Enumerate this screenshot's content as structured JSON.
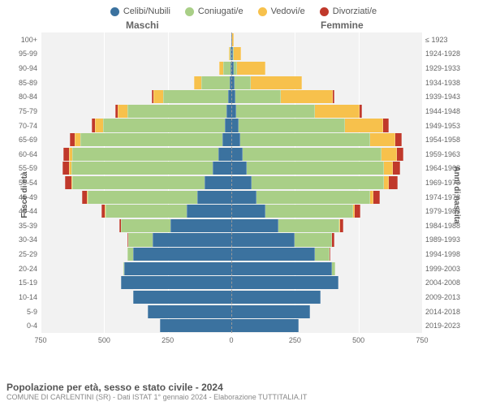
{
  "legend": [
    {
      "label": "Celibi/Nubili",
      "color": "#3b729f"
    },
    {
      "label": "Coniugati/e",
      "color": "#a9cf87"
    },
    {
      "label": "Vedovi/e",
      "color": "#f7c14c"
    },
    {
      "label": "Divorziati/e",
      "color": "#c0392b"
    }
  ],
  "header_male": "Maschi",
  "header_female": "Femmine",
  "ylabel_left": "Fasce di età",
  "ylabel_right": "Anni di nascita",
  "chart": {
    "max": 750,
    "xticks": [
      750,
      500,
      250,
      0,
      250,
      500,
      750
    ],
    "age_labels": [
      "100+",
      "95-99",
      "90-94",
      "85-89",
      "80-84",
      "75-79",
      "70-74",
      "65-69",
      "60-64",
      "55-59",
      "50-54",
      "45-49",
      "40-44",
      "35-39",
      "30-34",
      "25-29",
      "20-24",
      "15-19",
      "10-14",
      "5-9",
      "0-4"
    ],
    "birth_labels": [
      "≤ 1923",
      "1924-1928",
      "1929-1933",
      "1934-1938",
      "1939-1943",
      "1944-1948",
      "1949-1953",
      "1954-1958",
      "1959-1963",
      "1964-1968",
      "1969-1973",
      "1974-1978",
      "1979-1983",
      "1984-1988",
      "1989-1993",
      "1994-1998",
      "1999-2003",
      "2004-2008",
      "2009-2013",
      "2014-2018",
      "2019-2023"
    ],
    "rows": [
      {
        "m": {
          "cel": 0,
          "con": 0,
          "ved": 0,
          "div": 0
        },
        "f": {
          "cel": 3,
          "con": 0,
          "ved": 5,
          "div": 0
        }
      },
      {
        "m": {
          "cel": 2,
          "con": 4,
          "ved": 4,
          "div": 0
        },
        "f": {
          "cel": 5,
          "con": 3,
          "ved": 30,
          "div": 0
        }
      },
      {
        "m": {
          "cel": 4,
          "con": 28,
          "ved": 15,
          "div": 0
        },
        "f": {
          "cel": 8,
          "con": 15,
          "ved": 110,
          "div": 0
        }
      },
      {
        "m": {
          "cel": 8,
          "con": 110,
          "ved": 30,
          "div": 0
        },
        "f": {
          "cel": 12,
          "con": 65,
          "ved": 200,
          "div": 0
        }
      },
      {
        "m": {
          "cel": 12,
          "con": 255,
          "ved": 40,
          "div": 5
        },
        "f": {
          "cel": 15,
          "con": 180,
          "ved": 205,
          "div": 5
        }
      },
      {
        "m": {
          "cel": 18,
          "con": 390,
          "ved": 40,
          "div": 8
        },
        "f": {
          "cel": 20,
          "con": 310,
          "ved": 175,
          "div": 10
        }
      },
      {
        "m": {
          "cel": 25,
          "con": 480,
          "ved": 30,
          "div": 15
        },
        "f": {
          "cel": 28,
          "con": 420,
          "ved": 150,
          "div": 20
        }
      },
      {
        "m": {
          "cel": 35,
          "con": 560,
          "ved": 20,
          "div": 20
        },
        "f": {
          "cel": 35,
          "con": 510,
          "ved": 100,
          "div": 25
        }
      },
      {
        "m": {
          "cel": 50,
          "con": 575,
          "ved": 12,
          "div": 25
        },
        "f": {
          "cel": 45,
          "con": 545,
          "ved": 60,
          "div": 28
        }
      },
      {
        "m": {
          "cel": 75,
          "con": 555,
          "ved": 8,
          "div": 25
        },
        "f": {
          "cel": 60,
          "con": 540,
          "ved": 35,
          "div": 30
        }
      },
      {
        "m": {
          "cel": 105,
          "con": 520,
          "ved": 5,
          "div": 25
        },
        "f": {
          "cel": 80,
          "con": 520,
          "ved": 20,
          "div": 35
        }
      },
      {
        "m": {
          "cel": 135,
          "con": 430,
          "ved": 3,
          "div": 20
        },
        "f": {
          "cel": 100,
          "con": 445,
          "ved": 12,
          "div": 28
        }
      },
      {
        "m": {
          "cel": 175,
          "con": 320,
          "ved": 2,
          "div": 12
        },
        "f": {
          "cel": 135,
          "con": 345,
          "ved": 6,
          "div": 20
        }
      },
      {
        "m": {
          "cel": 240,
          "con": 195,
          "ved": 0,
          "div": 6
        },
        "f": {
          "cel": 185,
          "con": 240,
          "ved": 3,
          "div": 12
        }
      },
      {
        "m": {
          "cel": 310,
          "con": 95,
          "ved": 0,
          "div": 3
        },
        "f": {
          "cel": 250,
          "con": 145,
          "ved": 0,
          "div": 10
        }
      },
      {
        "m": {
          "cel": 385,
          "con": 25,
          "ved": 0,
          "div": 0
        },
        "f": {
          "cel": 330,
          "con": 55,
          "ved": 0,
          "div": 3
        }
      },
      {
        "m": {
          "cel": 420,
          "con": 3,
          "ved": 0,
          "div": 0
        },
        "f": {
          "cel": 395,
          "con": 12,
          "ved": 0,
          "div": 0
        }
      },
      {
        "m": {
          "cel": 435,
          "con": 0,
          "ved": 0,
          "div": 0
        },
        "f": {
          "cel": 420,
          "con": 0,
          "ved": 0,
          "div": 0
        }
      },
      {
        "m": {
          "cel": 385,
          "con": 0,
          "ved": 0,
          "div": 0
        },
        "f": {
          "cel": 350,
          "con": 0,
          "ved": 0,
          "div": 0
        }
      },
      {
        "m": {
          "cel": 330,
          "con": 0,
          "ved": 0,
          "div": 0
        },
        "f": {
          "cel": 310,
          "con": 0,
          "ved": 0,
          "div": 0
        }
      },
      {
        "m": {
          "cel": 280,
          "con": 0,
          "ved": 0,
          "div": 0
        },
        "f": {
          "cel": 265,
          "con": 0,
          "ved": 0,
          "div": 0
        }
      }
    ]
  },
  "footer_title": "Popolazione per età, sesso e stato civile - 2024",
  "footer_sub": "COMUNE DI CARLENTINI (SR) - Dati ISTAT 1° gennaio 2024 - Elaborazione TUTTITALIA.IT"
}
